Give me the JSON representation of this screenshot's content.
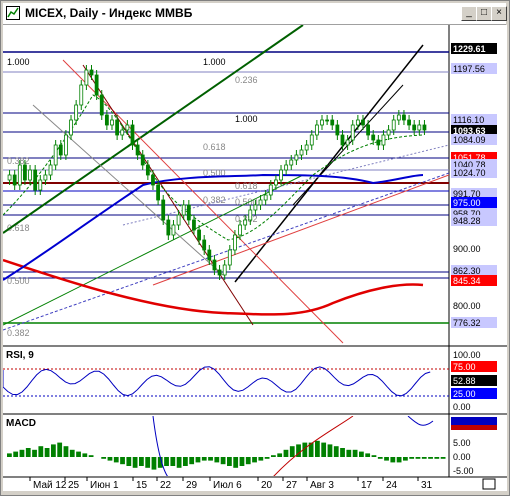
{
  "window": {
    "title": "MICEX, Daily - Индекс ММВБ",
    "buttons": {
      "minimize": "_",
      "restore": "□",
      "close": "×"
    }
  },
  "main_panel": {
    "price_labels": [
      {
        "text": "1229.61",
        "style": "dark"
      },
      {
        "text": "1197.56",
        "style": "light"
      },
      {
        "text": "1116.10",
        "style": "plain"
      },
      {
        "text": "1093.63",
        "style": "black"
      },
      {
        "text": "1084.09",
        "style": "plain"
      },
      {
        "text": "1051.78",
        "style": "red"
      },
      {
        "text": "1040.78",
        "style": "plain"
      },
      {
        "text": "1024.70",
        "style": "plain"
      },
      {
        "text": "991.70",
        "style": "plain"
      },
      {
        "text": "975.00",
        "style": "blue"
      },
      {
        "text": "958.70",
        "style": "plain"
      },
      {
        "text": "948.28",
        "style": "plain"
      },
      {
        "text": "900.00",
        "style": "none"
      },
      {
        "text": "862.30",
        "style": "plain"
      },
      {
        "text": "845.34",
        "style": "red"
      },
      {
        "text": "800.00",
        "style": "none"
      },
      {
        "text": "776.32",
        "style": "plain"
      }
    ],
    "fib_labels": [
      "1.000",
      "1.000",
      "0.236",
      "1.000",
      "0.618",
      "0.500",
      "0.618",
      "0.382",
      "0.500",
      "0.382",
      "0.382",
      "0.618",
      "0.500",
      "0.382"
    ]
  },
  "rsi_panel": {
    "title": "RSI, 9",
    "axis": [
      {
        "text": "100.00",
        "style": "none"
      },
      {
        "text": "75.00",
        "style": "red"
      },
      {
        "text": "52.88",
        "style": "black"
      },
      {
        "text": "25.00",
        "style": "blue"
      },
      {
        "text": "0.00",
        "style": "none"
      }
    ]
  },
  "macd_panel": {
    "title": "MACD",
    "axis": [
      {
        "text": "5.00",
        "style": "none"
      },
      {
        "text": "0.00",
        "style": "none"
      },
      {
        "text": "-5.00",
        "style": "none"
      }
    ]
  },
  "x_axis": {
    "labels": [
      "Май 12",
      "25",
      "Июн 1",
      "15",
      "22",
      "29",
      "Июл 6",
      "20",
      "27",
      "Авг 3",
      "17",
      "24",
      "31"
    ]
  },
  "colors": {
    "candle": "#008000",
    "ma_blue": "#0000ff",
    "ma_red": "#ff0000",
    "macd_bar": "#008000",
    "label_dark_bg": "#000000",
    "label_light_bg": "#c8c8ff"
  }
}
